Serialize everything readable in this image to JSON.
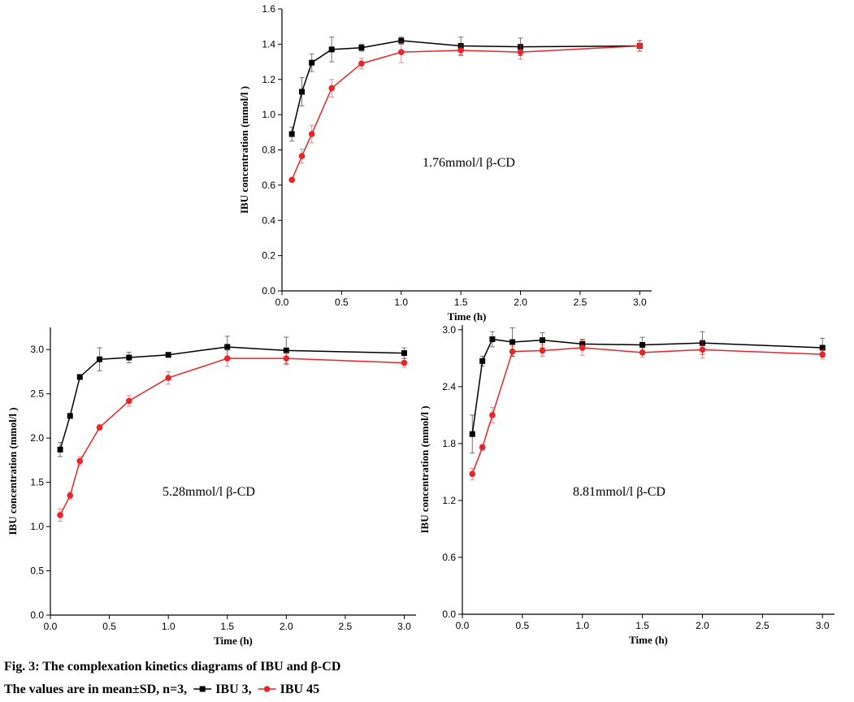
{
  "chart_data": [
    {
      "type": "line",
      "xlabel": "Time (h)",
      "ylabel": "IBU concentration (mmol/l )",
      "annotation": "1.76mmol/l  β-CD",
      "x": [
        0.083,
        0.167,
        0.25,
        0.417,
        0.667,
        1,
        1.5,
        2,
        3
      ],
      "series": [
        {
          "name": "IBU 3",
          "color": "#000000",
          "marker": "square",
          "values": [
            0.89,
            1.13,
            1.295,
            1.37,
            1.38,
            1.42,
            1.39,
            1.385,
            1.39
          ],
          "errors": [
            0.04,
            0.08,
            0.05,
            0.07,
            0.02,
            0.02,
            0.05,
            0.05,
            0.03
          ]
        },
        {
          "name": "IBU 45",
          "color": "#e8262a",
          "marker": "circle",
          "values": [
            0.63,
            0.765,
            0.89,
            1.15,
            1.29,
            1.355,
            1.365,
            1.355,
            1.39
          ],
          "errors": [
            0.01,
            0.04,
            0.05,
            0.05,
            0.03,
            0.06,
            0.03,
            0.04,
            0.03
          ]
        }
      ],
      "xlim": [
        0,
        3.1
      ],
      "ylim": [
        0,
        1.6
      ],
      "xticks": [
        {
          "value": 0,
          "label": "0.0"
        },
        0.5,
        {
          "value": 1,
          "label": "1.0"
        },
        1.5,
        {
          "value": 2,
          "label": "2.0"
        },
        2.5,
        {
          "value": 3,
          "label": "3.0"
        }
      ],
      "yticks": [
        {
          "value": 0,
          "label": "0.0"
        },
        0.2,
        0.4,
        0.6,
        0.8,
        {
          "value": 1,
          "label": "1.0"
        },
        1.2,
        1.4,
        1.6
      ]
    },
    {
      "type": "line",
      "xlabel": "Time (h)",
      "ylabel": "IBU concentration (mmol/l )",
      "annotation": "5.28mmol/l  β-CD",
      "x": [
        0.083,
        0.167,
        0.25,
        0.417,
        0.667,
        1,
        1.5,
        2,
        3
      ],
      "series": [
        {
          "name": "IBU 3",
          "color": "#000000",
          "marker": "square",
          "values": [
            1.87,
            2.25,
            2.69,
            2.89,
            2.91,
            2.94,
            3.03,
            2.99,
            2.96
          ],
          "errors": [
            0.08,
            0.02,
            0.02,
            0.13,
            0.06,
            0.02,
            0.12,
            0.15,
            0.06
          ]
        },
        {
          "name": "IBU 45",
          "color": "#e8262a",
          "marker": "circle",
          "values": [
            1.13,
            1.35,
            1.74,
            2.12,
            2.42,
            2.68,
            2.9,
            2.9,
            2.85
          ],
          "errors": [
            0.07,
            0.04,
            0.05,
            0.03,
            0.06,
            0.07,
            0.09,
            0.07,
            0.05
          ]
        }
      ],
      "xlim": [
        0,
        3.1
      ],
      "ylim": [
        0,
        3.25
      ],
      "xticks": [
        {
          "value": 0,
          "label": "0.0"
        },
        0.5,
        {
          "value": 1,
          "label": "1.0"
        },
        1.5,
        {
          "value": 2,
          "label": "2.0"
        },
        2.5,
        {
          "value": 3,
          "label": "3.0"
        }
      ],
      "yticks": [
        {
          "value": 0,
          "label": "0.0"
        },
        0.5,
        {
          "value": 1,
          "label": "1.0"
        },
        1.5,
        {
          "value": 2,
          "label": "2.0"
        },
        2.5,
        {
          "value": 3,
          "label": "3.0"
        }
      ]
    },
    {
      "type": "line",
      "xlabel": "Time (h)",
      "ylabel": "IBU concentration (mmol/l )",
      "annotation": "8.81mmol/l  β-CD",
      "x": [
        0.083,
        0.167,
        0.25,
        0.417,
        0.667,
        1,
        1.5,
        2,
        3
      ],
      "series": [
        {
          "name": "IBU 3",
          "color": "#000000",
          "marker": "square",
          "values": [
            1.9,
            2.67,
            2.9,
            2.87,
            2.89,
            2.85,
            2.84,
            2.86,
            2.81
          ],
          "errors": [
            0.2,
            0.05,
            0.08,
            0.15,
            0.08,
            0.05,
            0.08,
            0.12,
            0.1
          ]
        },
        {
          "name": "IBU 45",
          "color": "#e8262a",
          "marker": "circle",
          "values": [
            1.48,
            1.76,
            2.1,
            2.77,
            2.78,
            2.81,
            2.76,
            2.79,
            2.74
          ],
          "errors": [
            0.06,
            0.03,
            0.08,
            0.05,
            0.06,
            0.08,
            0.05,
            0.09,
            0.05
          ]
        }
      ],
      "xlim": [
        0,
        3.1
      ],
      "ylim": [
        0,
        3.05
      ],
      "xticks": [
        {
          "value": 0,
          "label": "0.0"
        },
        0.5,
        {
          "value": 1,
          "label": "1.0"
        },
        1.5,
        {
          "value": 2,
          "label": "2.0"
        },
        2.5,
        {
          "value": 3,
          "label": "3.0"
        }
      ],
      "yticks": [
        {
          "value": 0,
          "label": "0.0"
        },
        0.6,
        1.2,
        1.8,
        2.4,
        {
          "value": 3,
          "label": "3.0"
        }
      ]
    }
  ],
  "caption": {
    "title": "Fig. 3: The complexation kinetics diagrams of IBU and β-CD",
    "note": "The values are in mean±SD, n=3,",
    "legend_separator": ","
  }
}
